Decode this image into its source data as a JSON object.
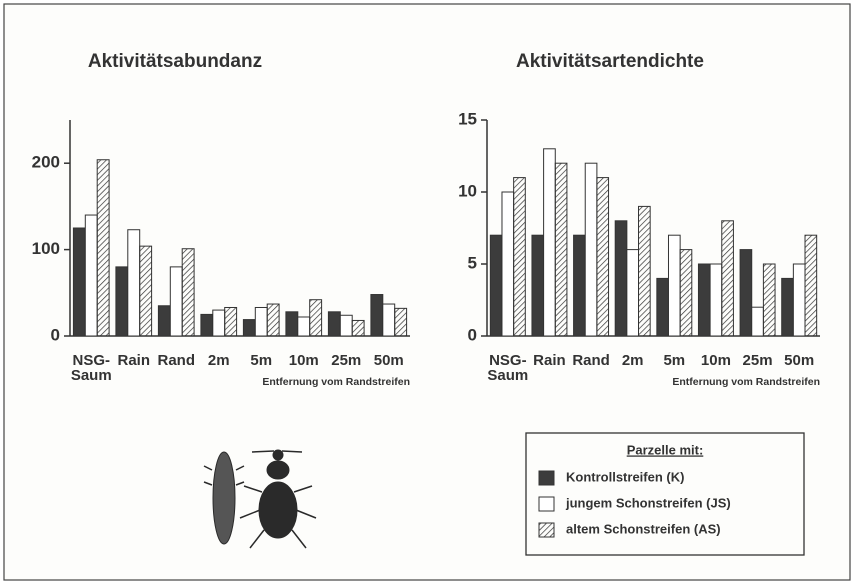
{
  "chart_data": [
    {
      "type": "bar",
      "title": "Aktivitätsabundanz",
      "categories": [
        "NSG-\nSaum",
        "Rain",
        "Rand",
        "2m",
        "5m",
        "10m",
        "25m",
        "50m"
      ],
      "x_label": "Entfernung vom Randstreifen",
      "legend_title": "Parzelle mit:",
      "series": [
        {
          "name": "Kontrollstreifen (K)",
          "color": "#3c3c3c",
          "values": [
            125,
            80,
            35,
            25,
            19,
            28,
            28,
            48
          ]
        },
        {
          "name": "jungem Schonstreifen (JS)",
          "color": "#ffffff",
          "values": [
            140,
            123,
            80,
            30,
            33,
            22,
            24,
            37
          ]
        },
        {
          "name": "altem Schonstreifen (AS)",
          "color": "#a0a0a0",
          "hatch": true,
          "values": [
            204,
            104,
            101,
            33,
            37,
            42,
            18,
            32
          ]
        }
      ],
      "ylim": [
        0,
        250
      ],
      "yticks": [
        0,
        100,
        200
      ]
    },
    {
      "type": "bar",
      "title": "Aktivitätsartendichte",
      "categories": [
        "NSG-\nSaum",
        "Rain",
        "Rand",
        "2m",
        "5m",
        "10m",
        "25m",
        "50m"
      ],
      "x_label": "Entfernung vom Randstreifen",
      "series": [
        {
          "color": "#3c3c3c",
          "values": [
            7,
            7,
            7,
            8,
            4,
            5,
            6,
            4
          ]
        },
        {
          "color": "#ffffff",
          "values": [
            10,
            13,
            12,
            6,
            7,
            5,
            2,
            5
          ]
        },
        {
          "color": "#a0a0a0",
          "hatch": true,
          "values": [
            11,
            12,
            11,
            9,
            6,
            8,
            5,
            7
          ]
        }
      ],
      "ylim": [
        0,
        15
      ],
      "yticks": [
        0,
        5,
        10,
        15
      ]
    }
  ]
}
